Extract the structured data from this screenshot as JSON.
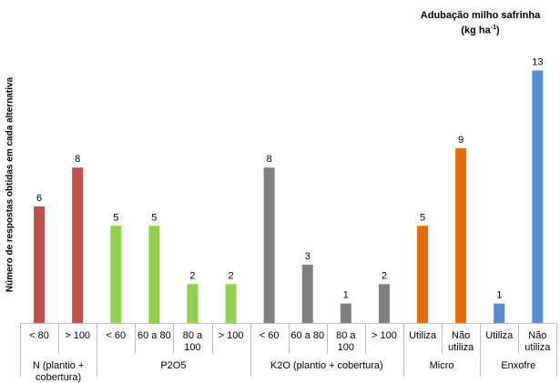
{
  "chart_data": {
    "type": "bar",
    "title_line1": "Adubação milho safrinha",
    "title_line2": "(kg ha",
    "title_sup": "-1",
    "title_close": ")",
    "ylabel": "Número de respostas obtidas em cada alternativa",
    "xlabel": "",
    "ylim": [
      0,
      13
    ],
    "grid": false,
    "categories": [
      {
        "label": [
          "< 80"
        ],
        "value": 6,
        "group": 0
      },
      {
        "label": [
          "> 100"
        ],
        "value": 8,
        "group": 0
      },
      {
        "label": [
          "< 60"
        ],
        "value": 5,
        "group": 1
      },
      {
        "label": [
          "60 a 80"
        ],
        "value": 5,
        "group": 1
      },
      {
        "label": [
          "80 a",
          "100"
        ],
        "value": 2,
        "group": 1
      },
      {
        "label": [
          "> 100"
        ],
        "value": 2,
        "group": 1
      },
      {
        "label": [
          "< 60"
        ],
        "value": 8,
        "group": 2
      },
      {
        "label": [
          "60 a 80"
        ],
        "value": 3,
        "group": 2
      },
      {
        "label": [
          "80 a",
          "100"
        ],
        "value": 1,
        "group": 2
      },
      {
        "label": [
          "> 100"
        ],
        "value": 2,
        "group": 2
      },
      {
        "label": [
          "Utiliza"
        ],
        "value": 5,
        "group": 3
      },
      {
        "label": [
          "Não",
          "utiliza"
        ],
        "value": 9,
        "group": 3
      },
      {
        "label": [
          "Utiliza"
        ],
        "value": 1,
        "group": 4
      },
      {
        "label": [
          "Não",
          "utiliza"
        ],
        "value": 13,
        "group": 4
      }
    ],
    "groups": [
      {
        "label": [
          "N (plantio +",
          "cobertura)"
        ],
        "color": "#C0504D"
      },
      {
        "label": [
          "P2O5"
        ],
        "color": "#92D050"
      },
      {
        "label": [
          "K2O (plantio + cobertura)"
        ],
        "color": "#808080"
      },
      {
        "label": [
          "Micro"
        ],
        "color": "#E46C0A"
      },
      {
        "label": [
          "Enxofre"
        ],
        "color": "#558ED5"
      }
    ]
  }
}
